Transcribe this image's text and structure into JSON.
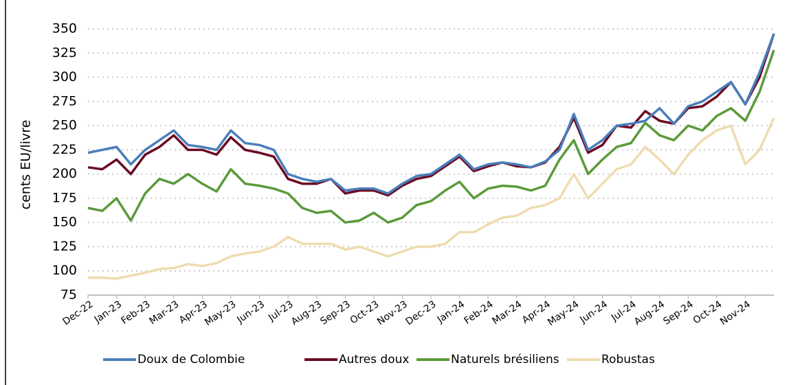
{
  "chart_data": {
    "type": "line",
    "y_label": "cents EU/livre",
    "categories": [
      "Dec-22",
      null,
      "Jan-23",
      null,
      "Feb-23",
      null,
      "Mar-23",
      null,
      "Apr-23",
      null,
      "May-23",
      null,
      "Jun-23",
      null,
      "Jul-23",
      null,
      "Aug-23",
      null,
      "Sep-23",
      null,
      "Oct-23",
      null,
      "Nov-23",
      null,
      "Dec-23",
      null,
      "Jan-24",
      null,
      "Feb-24",
      null,
      "Mar-24",
      null,
      "Apr-24",
      null,
      "May-24",
      null,
      "Jun-24",
      null,
      "Jul-24",
      null,
      "Aug-24",
      null,
      "Sep-24",
      null,
      "Oct-24",
      null,
      "Nov-24",
      null,
      null
    ],
    "series": [
      {
        "name": "Doux de Colombie",
        "color": "#4a7ebb",
        "values": [
          222,
          225,
          228,
          210,
          225,
          235,
          245,
          230,
          228,
          225,
          245,
          232,
          230,
          225,
          200,
          195,
          192,
          195,
          183,
          185,
          185,
          180,
          190,
          198,
          200,
          210,
          220,
          205,
          210,
          212,
          210,
          207,
          213,
          225,
          262,
          225,
          235,
          250,
          252,
          255,
          268,
          252,
          270,
          275,
          285,
          295,
          272,
          305,
          345
        ]
      },
      {
        "name": "Autres doux",
        "color": "#6b0a22",
        "values": [
          207,
          205,
          215,
          200,
          220,
          228,
          240,
          225,
          225,
          220,
          238,
          225,
          222,
          218,
          195,
          190,
          190,
          195,
          180,
          183,
          183,
          178,
          188,
          195,
          198,
          208,
          218,
          203,
          208,
          212,
          208,
          207,
          212,
          228,
          258,
          222,
          230,
          250,
          248,
          265,
          255,
          252,
          268,
          270,
          280,
          295,
          272,
          300,
          345
        ]
      },
      {
        "name": "Naturels brésiliens",
        "color": "#5a9a3a",
        "values": [
          165,
          162,
          175,
          152,
          180,
          195,
          190,
          200,
          190,
          182,
          205,
          190,
          188,
          185,
          180,
          165,
          160,
          162,
          150,
          152,
          160,
          150,
          155,
          168,
          172,
          183,
          192,
          175,
          185,
          188,
          187,
          183,
          188,
          215,
          235,
          200,
          215,
          228,
          232,
          253,
          240,
          235,
          250,
          245,
          260,
          268,
          255,
          285,
          328
        ]
      },
      {
        "name": "Robustas",
        "color": "#eedcb0",
        "values": [
          93,
          93,
          92,
          95,
          98,
          102,
          103,
          107,
          105,
          108,
          115,
          118,
          120,
          125,
          135,
          128,
          128,
          128,
          122,
          125,
          120,
          115,
          120,
          125,
          125,
          128,
          140,
          140,
          148,
          155,
          157,
          165,
          168,
          175,
          200,
          175,
          190,
          205,
          210,
          228,
          215,
          200,
          220,
          235,
          245,
          250,
          210,
          225,
          258
        ]
      }
    ],
    "ylim": [
      75,
      350
    ],
    "yticks": [
      75,
      100,
      125,
      150,
      175,
      200,
      225,
      250,
      275,
      300,
      325,
      350
    ],
    "grid": true,
    "legend": "bottom"
  }
}
